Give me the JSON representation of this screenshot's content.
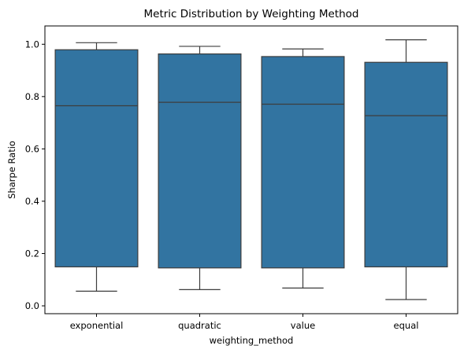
{
  "chart_data": {
    "type": "box",
    "title": "Metric Distribution by Weighting Method",
    "xlabel": "weighting_method",
    "ylabel": "Sharpe Ratio",
    "ylim": [
      -0.03,
      1.07
    ],
    "yticks": [
      0.0,
      0.2,
      0.4,
      0.6,
      0.8,
      1.0
    ],
    "ytick_labels": [
      "0.0",
      "0.2",
      "0.4",
      "0.6",
      "0.8",
      "1.0"
    ],
    "categories": [
      "exponential",
      "quadratic",
      "value",
      "equal"
    ],
    "boxes": [
      {
        "category": "exponential",
        "whisker_low": 0.056,
        "q1": 0.149,
        "median": 0.765,
        "q3": 0.979,
        "whisker_high": 1.006
      },
      {
        "category": "quadratic",
        "whisker_low": 0.062,
        "q1": 0.145,
        "median": 0.778,
        "q3": 0.963,
        "whisker_high": 0.992
      },
      {
        "category": "value",
        "whisker_low": 0.068,
        "q1": 0.145,
        "median": 0.771,
        "q3": 0.953,
        "whisker_high": 0.982
      },
      {
        "category": "equal",
        "whisker_low": 0.024,
        "q1": 0.149,
        "median": 0.727,
        "q3": 0.931,
        "whisker_high": 1.017
      }
    ],
    "colors": {
      "box_fill": "#3274a1",
      "line": "#3d3d3d",
      "axis": "#000000"
    },
    "grid": false,
    "legend": "none"
  }
}
